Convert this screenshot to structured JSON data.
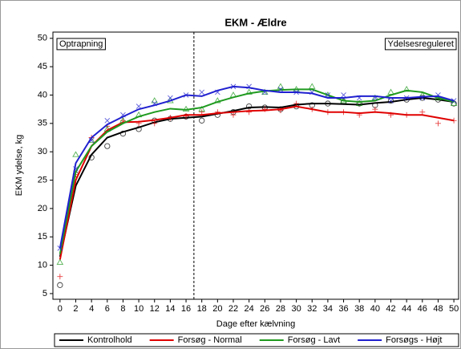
{
  "chart_data": {
    "type": "line",
    "title": "EKM - Ældre",
    "x_label": "Dage efter kælvning",
    "y_label": "EKM ydelse, kg",
    "annotations": [
      "Optrapning",
      "Ydelsesreguleret"
    ],
    "vline": 17,
    "x": [
      0,
      2,
      4,
      6,
      8,
      10,
      12,
      14,
      16,
      18,
      20,
      22,
      24,
      26,
      28,
      30,
      32,
      34,
      36,
      38,
      40,
      42,
      44,
      46,
      48,
      50
    ],
    "xlim": [
      -0.9,
      50.6
    ],
    "xticks": [
      0,
      2,
      4,
      6,
      8,
      10,
      12,
      14,
      16,
      18,
      20,
      22,
      24,
      26,
      28,
      30,
      32,
      34,
      36,
      38,
      40,
      42,
      44,
      46,
      48,
      50
    ],
    "ylim": [
      4,
      51.1
    ],
    "yticks": [
      5,
      10,
      15,
      20,
      25,
      30,
      35,
      40,
      45,
      50
    ],
    "series": [
      {
        "name": "Kontrolhold",
        "color": "#000000",
        "marker": "circle",
        "values": [
          11.5,
          24,
          29.5,
          32.5,
          33.5,
          34.3,
          35.2,
          35.8,
          36,
          36.2,
          36.7,
          37.2,
          37.8,
          37.9,
          37.8,
          38.3,
          38.5,
          38.5,
          38.4,
          38.3,
          38.6,
          38.8,
          39.2,
          39.5,
          39.2,
          38.8
        ],
        "points": [
          6.5,
          26,
          29,
          31,
          33.2,
          34,
          35.5,
          35.8,
          36.2,
          35.5,
          36.5,
          37,
          38,
          37.8,
          37.5,
          38,
          38.2,
          38.5,
          38.8,
          38.5,
          38.2,
          39,
          39.2,
          39.5,
          39.2,
          38.5
        ]
      },
      {
        "name": "Forsøg - Normal",
        "color": "#e00000",
        "marker": "plus",
        "values": [
          11,
          25,
          31,
          33.8,
          35.2,
          35.3,
          35.6,
          36,
          36.5,
          36.5,
          36.8,
          37,
          37.2,
          37.3,
          37.5,
          38,
          37.5,
          37,
          37,
          36.8,
          37,
          36.8,
          36.5,
          36.5,
          36,
          35.5
        ],
        "points": [
          8,
          26,
          32.5,
          34.5,
          35.5,
          35,
          35,
          36,
          36.3,
          37,
          37,
          36.5,
          37,
          37.5,
          37.3,
          38.5,
          37.5,
          37,
          37,
          36.5,
          37.5,
          36.5,
          36.5,
          37,
          35,
          35.5
        ]
      },
      {
        "name": "Forsøg - Lavt",
        "color": "#1f9a1f",
        "marker": "triangle",
        "values": [
          12,
          26.5,
          31,
          33.5,
          35,
          36.2,
          37,
          37.6,
          37.4,
          37.8,
          38.8,
          39.6,
          40.3,
          40.7,
          40.9,
          41,
          41,
          40,
          39,
          38.8,
          39,
          40,
          40.8,
          40.5,
          39.5,
          38.8
        ],
        "points": [
          10.5,
          29.5,
          32,
          34,
          35.5,
          36.5,
          39,
          39,
          37.5,
          37.5,
          39,
          40,
          40.5,
          40.5,
          41.5,
          41,
          41.5,
          40,
          39,
          38.5,
          39.5,
          40.5,
          41,
          40,
          39.5,
          38.5
        ]
      },
      {
        "name": "Forsøgs - Højt",
        "color": "#2020d0",
        "marker": "x",
        "values": [
          13,
          28,
          32.5,
          34.8,
          36.2,
          37.5,
          38.2,
          39,
          40,
          39.8,
          40.8,
          41.5,
          41.3,
          40.8,
          40.5,
          40.5,
          40.3,
          39.5,
          39.5,
          39.8,
          39.8,
          39.5,
          39.5,
          39.7,
          39.8,
          39
        ],
        "points": [
          13,
          27,
          32,
          35.5,
          36.5,
          38,
          38.5,
          39.5,
          40,
          40.5,
          40.5,
          41.5,
          41.5,
          40.5,
          41,
          40.5,
          40.5,
          40,
          40,
          39.5,
          39.5,
          39,
          39.5,
          39.5,
          40,
          39
        ]
      }
    ]
  }
}
